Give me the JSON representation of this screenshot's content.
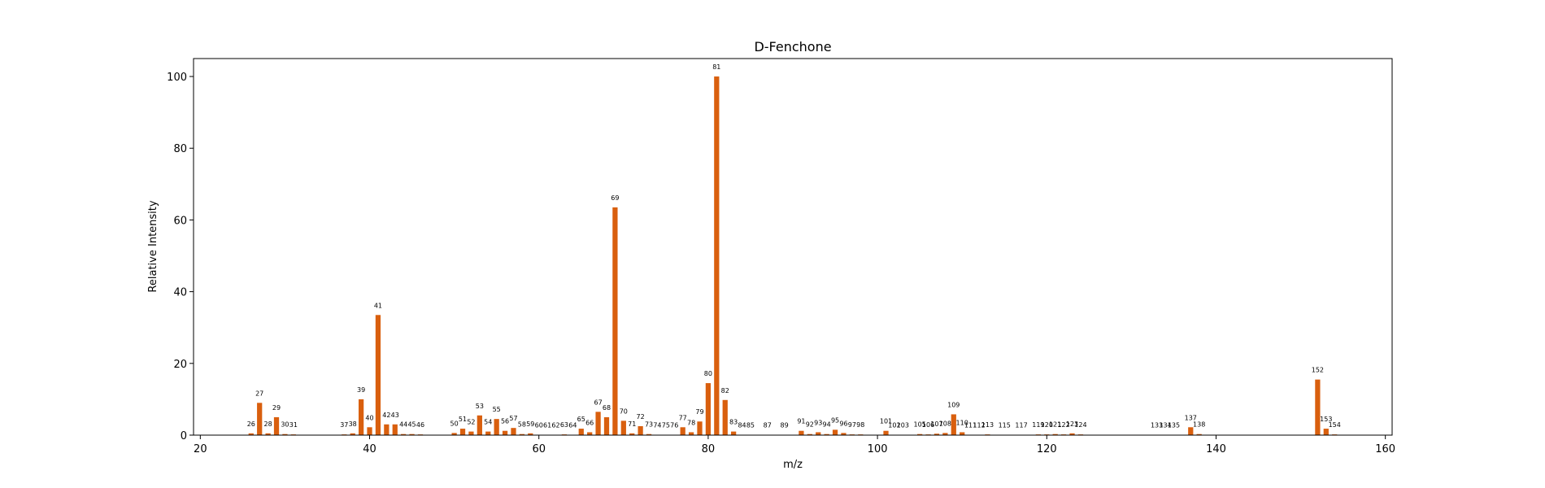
{
  "chart_data": {
    "type": "bar",
    "title": "D-Fenchone",
    "xlabel": "m/z",
    "ylabel": "Relative Intensity",
    "xlim": [
      19.2,
      160.8
    ],
    "ylim": [
      0,
      105
    ],
    "xticks": [
      20,
      40,
      60,
      80,
      100,
      120,
      140,
      160
    ],
    "yticks": [
      0,
      20,
      40,
      60,
      80,
      100
    ],
    "bar_color": "#d95f0e",
    "grid": false,
    "x": [
      26,
      27,
      28,
      29,
      30,
      31,
      37,
      38,
      39,
      40,
      41,
      42,
      43,
      44,
      45,
      46,
      50,
      51,
      52,
      53,
      54,
      55,
      56,
      57,
      58,
      59,
      60,
      61,
      62,
      63,
      64,
      65,
      66,
      67,
      68,
      69,
      70,
      71,
      72,
      73,
      74,
      75,
      76,
      77,
      78,
      79,
      80,
      81,
      82,
      83,
      84,
      85,
      87,
      89,
      91,
      92,
      93,
      94,
      95,
      96,
      97,
      98,
      101,
      102,
      103,
      105,
      106,
      107,
      108,
      109,
      110,
      111,
      112,
      113,
      115,
      117,
      119,
      120,
      121,
      122,
      123,
      124,
      133,
      134,
      135,
      137,
      138,
      152,
      153,
      154
    ],
    "values": [
      0.5,
      9,
      0.5,
      5,
      0.3,
      0.2,
      0.2,
      0.5,
      10,
      2.2,
      33.5,
      3,
      3,
      0.3,
      0.3,
      0.2,
      0.6,
      1.8,
      1,
      5.5,
      1,
      4.5,
      1.2,
      2,
      0.3,
      0.5,
      0.1,
      0.1,
      0.1,
      0.2,
      0.1,
      1.8,
      0.8,
      6.5,
      5,
      63.5,
      4,
      0.5,
      2.5,
      0.3,
      0.1,
      0.1,
      0.1,
      2.2,
      0.8,
      3.8,
      14.5,
      100,
      9.8,
      1,
      0.1,
      0.1,
      0.1,
      0.1,
      1.2,
      0.3,
      0.8,
      0.3,
      1.5,
      0.6,
      0.2,
      0.2,
      1.2,
      0.1,
      0.1,
      0.3,
      0.2,
      0.4,
      0.6,
      5.8,
      0.8,
      0.1,
      0.1,
      0.2,
      0.1,
      0.1,
      0.2,
      0.2,
      0.3,
      0.2,
      0.5,
      0.2,
      0.1,
      0.1,
      0.1,
      2.2,
      0.3,
      15.5,
      1.8,
      0.2
    ],
    "labels": [
      "26",
      "27",
      "28",
      "29",
      "30",
      "31",
      "37",
      "38",
      "39",
      "40",
      "41",
      "42",
      "43",
      "44",
      "45",
      "46",
      "50",
      "51",
      "52",
      "53",
      "54",
      "55",
      "56",
      "57",
      "58",
      "59",
      "60",
      "61",
      "62",
      "63",
      "64",
      "65",
      "66",
      "67",
      "68",
      "69",
      "70",
      "71",
      "72",
      "73",
      "74",
      "75",
      "76",
      "77",
      "78",
      "79",
      "80",
      "81",
      "82",
      "83",
      "84",
      "85",
      "87",
      "89",
      "91",
      "92",
      "93",
      "94",
      "95",
      "96",
      "97",
      "98",
      "101",
      "102",
      "103",
      "105",
      "106",
      "107",
      "108",
      "109",
      "110",
      "111",
      "112",
      "113",
      "115",
      "117",
      "119",
      "120",
      "121",
      "122",
      "123",
      "124",
      "133",
      "134",
      "135",
      "137",
      "138",
      "152",
      "153",
      "154"
    ]
  }
}
